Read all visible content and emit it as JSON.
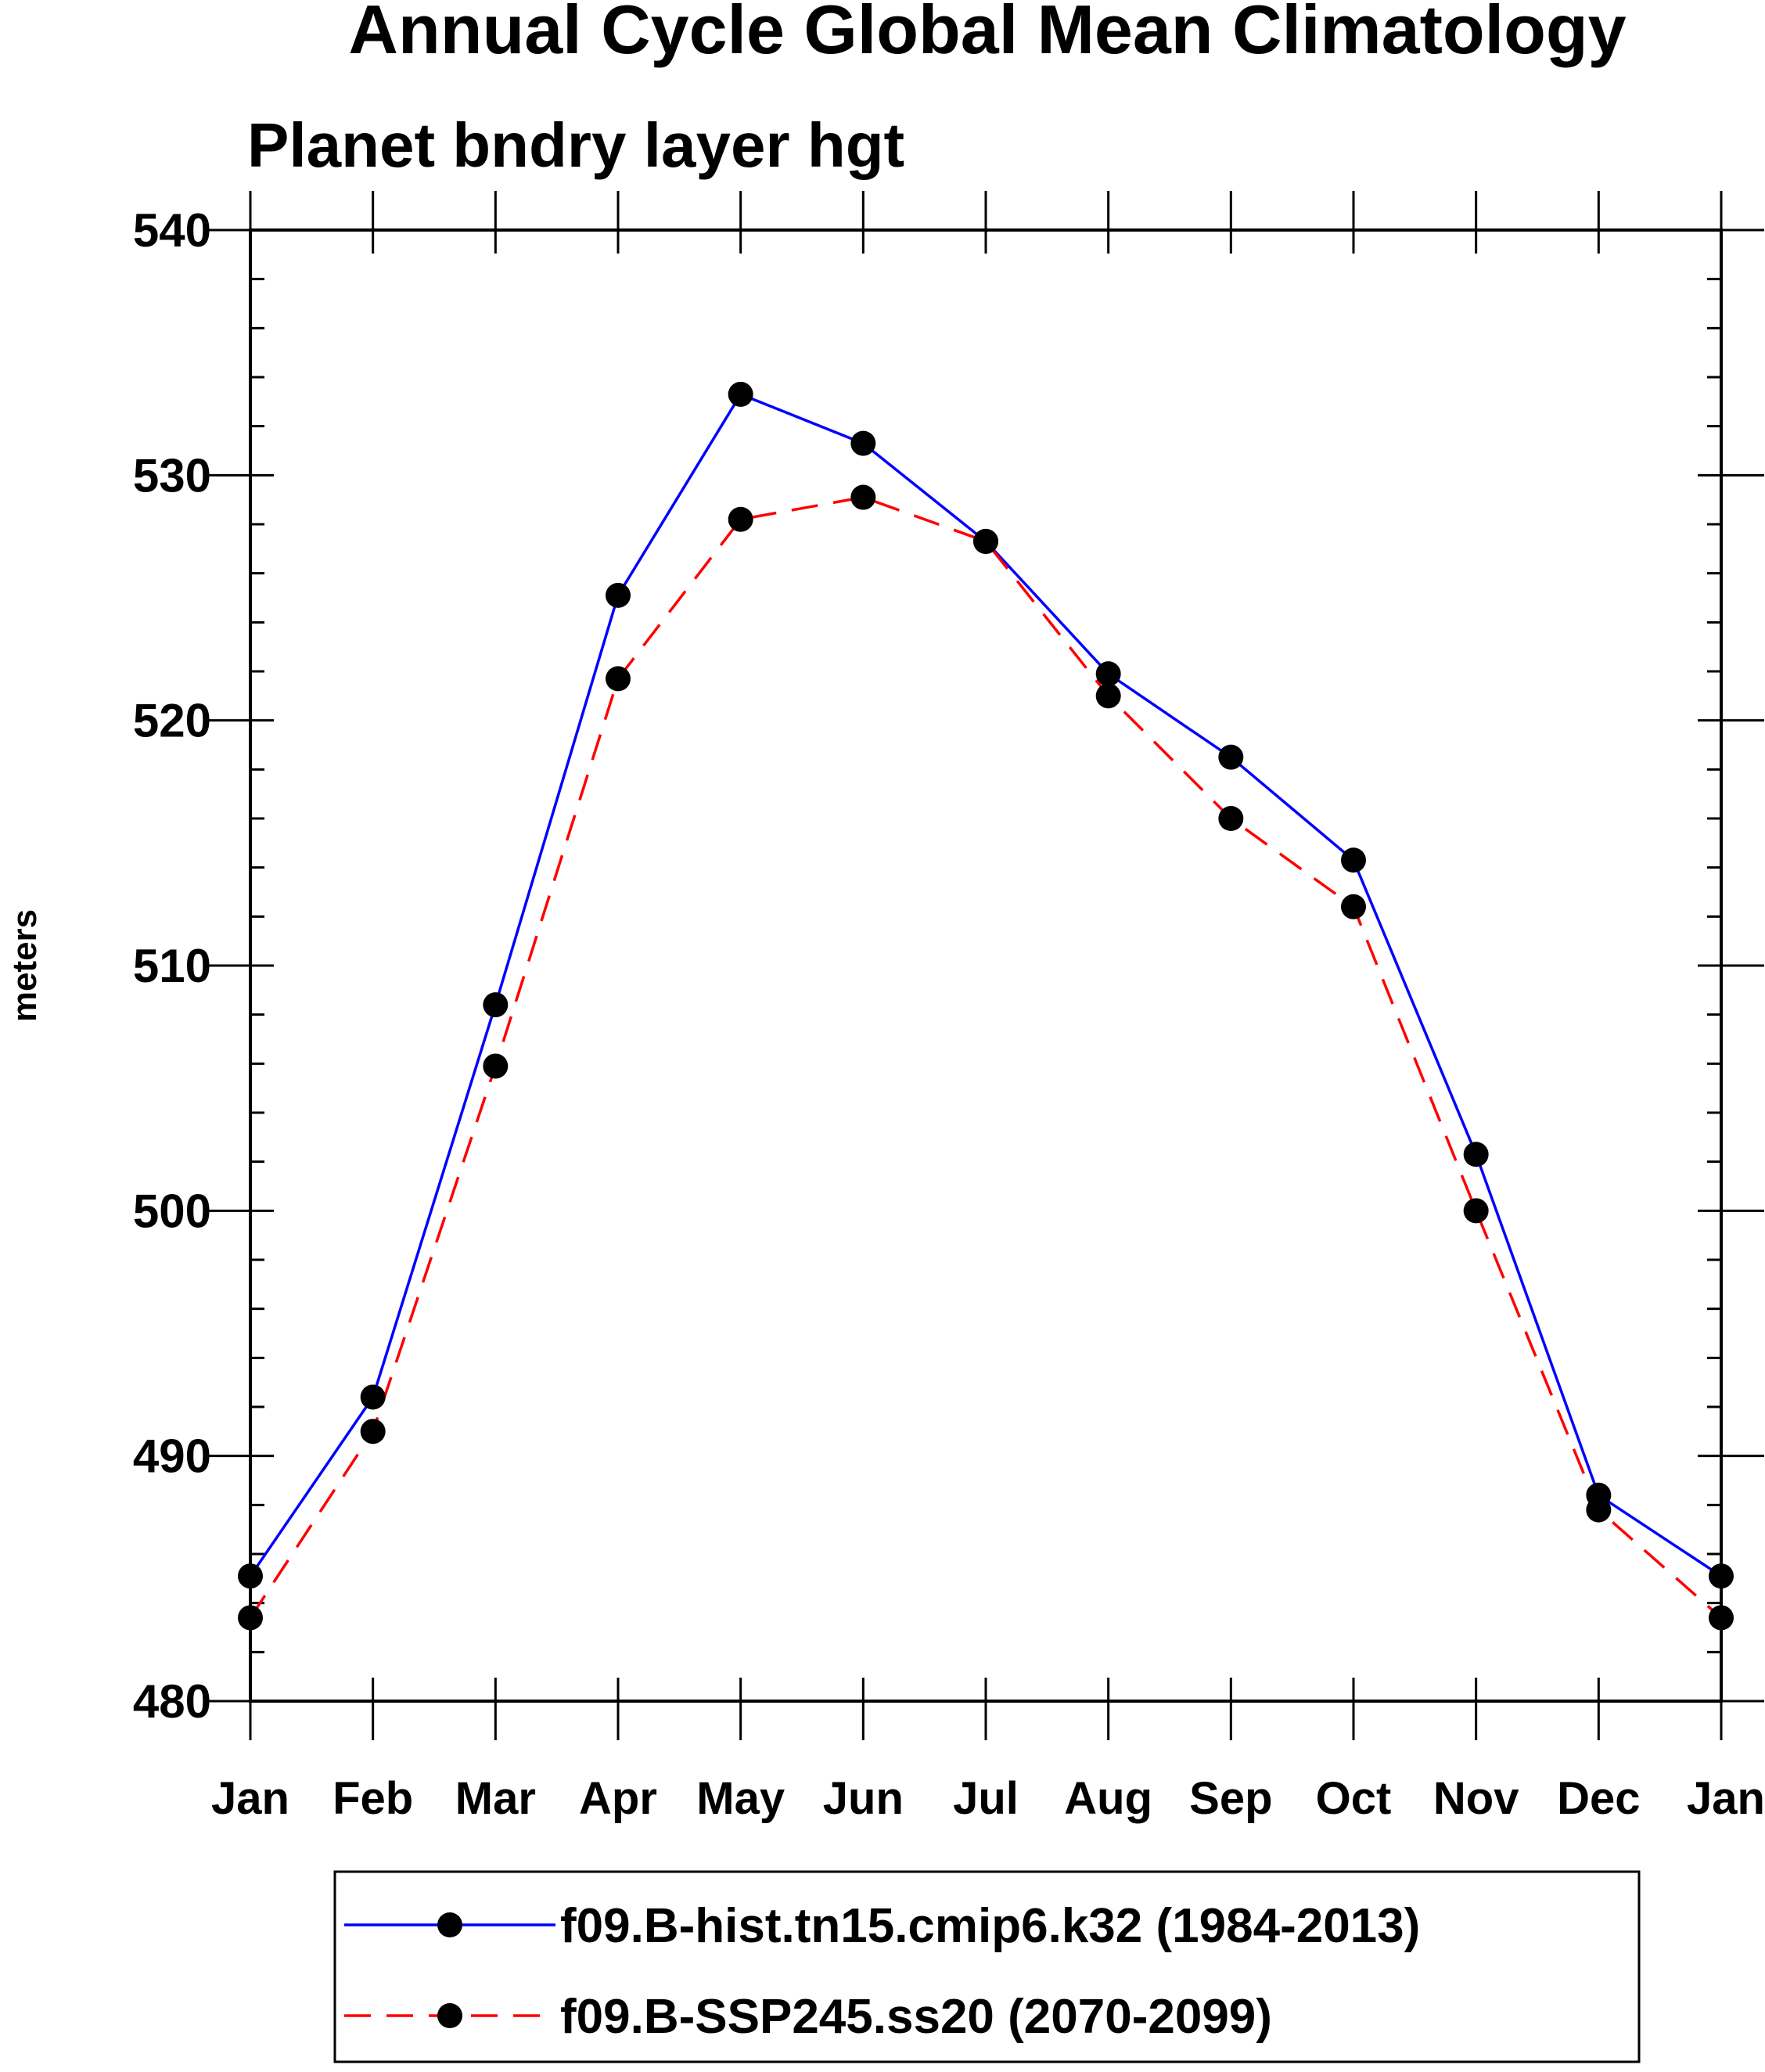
{
  "chart_data": {
    "type": "line",
    "title": "Annual Cycle Global Mean Climatology",
    "subtitle": "Planet bndry layer hgt",
    "xlabel": "",
    "ylabel": "meters",
    "categories": [
      "Jan",
      "Feb",
      "Mar",
      "Apr",
      "May",
      "Jun",
      "Jul",
      "Aug",
      "Sep",
      "Oct",
      "Nov",
      "Dec",
      "Jan"
    ],
    "ylim": [
      480,
      540
    ],
    "yticks": [
      "480",
      "490",
      "500",
      "510",
      "520",
      "530",
      "540"
    ],
    "grid": false,
    "legend_position": "bottom",
    "series": [
      {
        "name": "f09.B-hist.tn15.cmip6.k32 (1984-2013)",
        "color": "#0000ff",
        "style": "solid",
        "marker": "circle",
        "values": [
          485.1,
          492.4,
          508.4,
          525.1,
          533.3,
          531.3,
          527.3,
          521.9,
          518.5,
          514.3,
          502.3,
          488.4,
          485.1
        ]
      },
      {
        "name": "f09.B-SSP245.ss20 (2070-2099)",
        "color": "#ff0000",
        "style": "dashed",
        "marker": "circle",
        "values": [
          483.4,
          491.0,
          505.9,
          521.7,
          528.2,
          529.1,
          527.3,
          521.0,
          516.0,
          512.4,
          500.0,
          487.8,
          483.4
        ]
      }
    ]
  }
}
